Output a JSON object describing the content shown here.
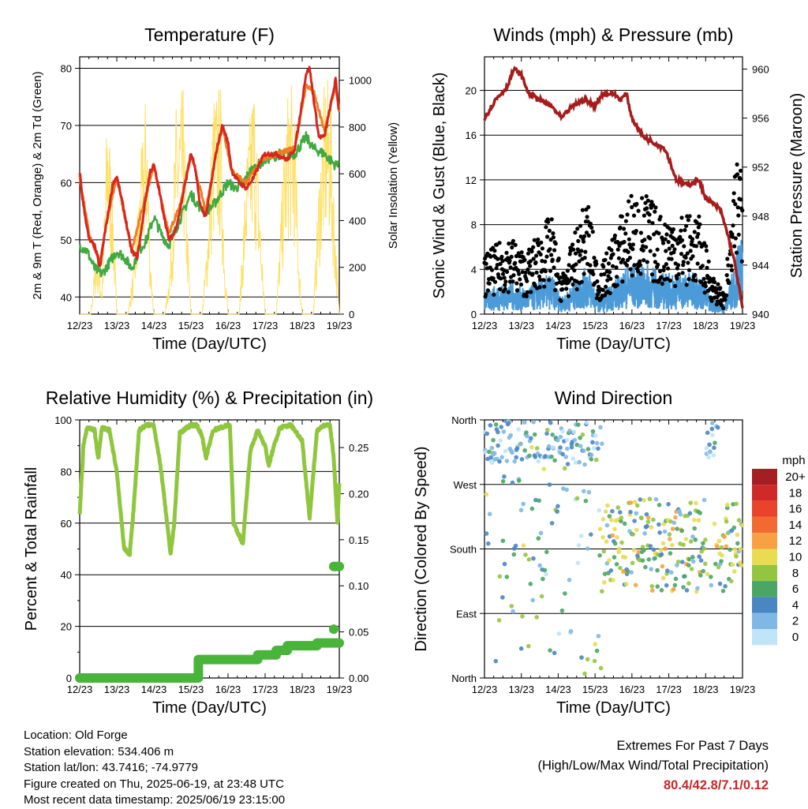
{
  "colors": {
    "red": "#d7261e",
    "orange": "#f07d25",
    "green": "#41a940",
    "yellow": "#ffe066",
    "blue": "#4b9bd8",
    "black": "#000000",
    "maroon": "#a51c1c",
    "rh_green": "#8fc63e",
    "precip_green": "#49b43a"
  },
  "xticks": [
    "12/23",
    "13/23",
    "14/23",
    "15/23",
    "16/23",
    "17/23",
    "18/23",
    "19/23"
  ],
  "xlabel": "Time (Day/UTC)",
  "chart_data": [
    {
      "id": "temp",
      "type": "line",
      "title": "Temperature (F)",
      "ylabel": "2m & 9m T (Red, Orange) & 2m Td (Green)",
      "y2label": "Solar Insolation (Yellow)",
      "ylim": [
        37,
        82
      ],
      "y2lim": [
        0,
        1100
      ],
      "yticks": [
        40,
        50,
        60,
        70,
        80
      ],
      "y2ticks": [
        0,
        200,
        400,
        600,
        800,
        1000
      ],
      "grid": true,
      "series": [
        {
          "color": "red",
          "x": [
            0,
            0.08,
            0.25,
            0.4,
            0.55,
            0.65,
            0.75,
            0.9,
            1.0,
            1.2,
            1.4,
            1.55,
            1.65,
            1.75,
            1.9,
            2.0,
            2.1,
            2.25,
            2.4,
            2.55,
            2.7,
            2.85,
            3.0,
            3.1,
            3.25,
            3.4,
            3.55,
            3.7,
            3.85,
            4.0,
            4.1,
            4.3,
            4.5,
            4.7,
            4.9,
            5.0,
            5.3,
            5.6,
            5.8,
            5.95,
            6.1,
            6.2,
            6.3,
            6.45,
            6.6,
            6.75,
            6.9,
            7.0
          ],
          "y": [
            62,
            57,
            50,
            49,
            45,
            50,
            54,
            60,
            61,
            55,
            48,
            47,
            51,
            56,
            62,
            63,
            60,
            55,
            50,
            51,
            55,
            60,
            65,
            63,
            56,
            54,
            60,
            66,
            70,
            67,
            62,
            60,
            59,
            61,
            64,
            65,
            65,
            64,
            66,
            72,
            79,
            80,
            75,
            68,
            68,
            73,
            78,
            72
          ]
        },
        {
          "color": "orange",
          "x": [
            0,
            0.25,
            0.55,
            0.75,
            1.0,
            1.4,
            1.75,
            2.0,
            2.4,
            2.7,
            3.0,
            3.4,
            3.7,
            3.85,
            4.1,
            4.5,
            4.9,
            5.3,
            5.8,
            6.1,
            6.3,
            6.6,
            6.9,
            7.0
          ],
          "y": [
            61,
            51,
            46,
            54,
            61,
            48,
            57,
            63,
            51,
            56,
            65,
            55,
            66,
            70,
            62,
            60,
            64,
            65,
            66,
            77,
            76,
            69,
            77,
            72
          ]
        },
        {
          "color": "green",
          "x": [
            0,
            0.2,
            0.4,
            0.6,
            0.8,
            1.0,
            1.2,
            1.4,
            1.6,
            1.8,
            2.0,
            2.2,
            2.4,
            2.6,
            2.8,
            3.0,
            3.2,
            3.4,
            3.6,
            3.8,
            4.0,
            4.2,
            4.4,
            4.6,
            5.0,
            5.4,
            5.8,
            6.1,
            6.3,
            6.6,
            6.9,
            7.0
          ],
          "y": [
            49,
            48,
            45,
            44,
            46,
            48,
            47,
            45,
            48,
            50,
            54,
            51,
            49,
            52,
            55,
            58,
            56,
            55,
            56,
            58,
            60,
            59,
            60,
            62,
            64,
            65,
            65,
            68,
            66,
            65,
            63,
            64
          ]
        },
        {
          "color": "yellow",
          "axis": "y2",
          "x": [
            0,
            0.3,
            0.45,
            0.6,
            0.75,
            0.9,
            1.0,
            1.3,
            1.45,
            1.6,
            1.8,
            1.9,
            2.0,
            2.3,
            2.45,
            2.6,
            2.8,
            2.9,
            3.0,
            3.3,
            3.45,
            3.6,
            3.8,
            3.9,
            4.0,
            4.3,
            4.5,
            4.7,
            4.85,
            5.0,
            5.3,
            5.5,
            5.65,
            5.8,
            5.9,
            6.0,
            6.3,
            6.45,
            6.6,
            6.75,
            6.9,
            7.0
          ],
          "y": [
            0,
            0,
            300,
            120,
            950,
            520,
            0,
            0,
            200,
            560,
            1000,
            300,
            0,
            0,
            250,
            900,
            980,
            400,
            0,
            0,
            380,
            950,
            1000,
            300,
            0,
            0,
            700,
            1050,
            500,
            0,
            0,
            700,
            1050,
            900,
            300,
            0,
            0,
            600,
            1000,
            1020,
            350,
            0
          ]
        }
      ]
    },
    {
      "id": "wind",
      "type": "scatter",
      "title": "Winds (mph) & Pressure (mb)",
      "ylabel": "Sonic Wind & Gust (Blue, Black)",
      "y2label": "Station Pressure (Maroon)",
      "ylim": [
        0,
        23
      ],
      "y2lim": [
        940,
        961
      ],
      "yticks": [
        0,
        4,
        8,
        12,
        16,
        20
      ],
      "y2ticks": [
        940,
        944,
        948,
        952,
        956,
        960
      ],
      "grid": true,
      "pressure": {
        "x": [
          0,
          0.3,
          0.6,
          0.8,
          1.0,
          1.2,
          1.5,
          1.8,
          2.1,
          2.4,
          2.7,
          3.0,
          3.2,
          3.5,
          3.7,
          3.85,
          4.0,
          4.3,
          4.6,
          4.9,
          5.2,
          5.5,
          5.8,
          6.0,
          6.2,
          6.4,
          6.6,
          6.8,
          7.0
        ],
        "y": [
          956,
          957.5,
          958.5,
          960,
          959.5,
          958,
          957.5,
          957,
          956,
          957,
          957.5,
          957,
          958,
          958,
          957.5,
          958,
          956,
          954.5,
          954,
          953.5,
          951,
          950.5,
          951,
          949.5,
          949,
          948.5,
          946.5,
          944,
          940.5
        ]
      },
      "wind_peaks": [
        [
          0,
          3
        ],
        [
          0.7,
          4
        ],
        [
          1.1,
          3
        ],
        [
          1.8,
          5
        ],
        [
          2.1,
          2
        ],
        [
          2.8,
          6
        ],
        [
          3.1,
          2
        ],
        [
          3.9,
          6
        ],
        [
          4.4,
          6
        ],
        [
          4.8,
          5
        ],
        [
          5.3,
          5
        ],
        [
          5.8,
          5
        ],
        [
          6.2,
          2
        ],
        [
          6.5,
          1
        ],
        [
          6.9,
          9
        ]
      ]
    },
    {
      "id": "rh",
      "type": "line",
      "title": "Relative Humidity (%) & Precipitation (in)",
      "ylabel": "Percent & Total Rainfall",
      "ylim": [
        0,
        100
      ],
      "y2lim": [
        0,
        0.28
      ],
      "yticks": [
        0,
        20,
        40,
        60,
        80,
        100
      ],
      "y2ticks": [
        "0.00",
        "0.05",
        "0.10",
        "0.15",
        "0.20",
        "0.25"
      ],
      "grid": true,
      "rh": {
        "x": [
          0,
          0.1,
          0.2,
          0.4,
          0.5,
          0.6,
          0.8,
          1.0,
          1.2,
          1.35,
          1.45,
          1.6,
          1.8,
          2.0,
          2.2,
          2.45,
          2.55,
          2.7,
          3.0,
          3.15,
          3.3,
          3.4,
          3.6,
          3.8,
          4.05,
          4.15,
          4.4,
          4.6,
          4.8,
          5.0,
          5.1,
          5.2,
          5.4,
          5.7,
          6.0,
          6.2,
          6.4,
          6.6,
          6.75,
          6.85,
          6.95,
          7.0
        ],
        "y": [
          63,
          90,
          97,
          96,
          85,
          97,
          96,
          80,
          50,
          48,
          65,
          96,
          98,
          98,
          80,
          48,
          60,
          95,
          98,
          98,
          94,
          85,
          96,
          97,
          98,
          60,
          52,
          88,
          96,
          90,
          82,
          88,
          97,
          98,
          92,
          62,
          96,
          98,
          98,
          85,
          60,
          76
        ]
      },
      "precip": {
        "x": [
          0,
          3.15,
          3.2,
          4.2,
          4.8,
          5.3,
          5.6,
          6.4,
          6.85,
          7.0
        ],
        "y": [
          0,
          0,
          0.02,
          0.02,
          0.025,
          0.03,
          0.035,
          0.038,
          0.038,
          0.038
        ]
      },
      "precip_points": [
        [
          6.85,
          0.053
        ],
        [
          6.85,
          0.121
        ],
        [
          7.0,
          0.121
        ]
      ]
    },
    {
      "id": "dir",
      "type": "scatter",
      "title": "Wind Direction",
      "ylabel": "Direction (Colored By Speed)",
      "yticks": [
        "North",
        "East",
        "South",
        "West",
        "North"
      ],
      "grid": true,
      "legend": {
        "unit": "mph",
        "labels": [
          "20+",
          "18",
          "16",
          "14",
          "12",
          "10",
          "8",
          "6",
          "4",
          "2",
          "0"
        ],
        "colors": [
          "#a41e22",
          "#cf2a28",
          "#ea432c",
          "#f26a30",
          "#f8a142",
          "#e9dc52",
          "#93c540",
          "#4aa665",
          "#4a86c2",
          "#7fb8e4",
          "#c0e4f8"
        ]
      }
    }
  ],
  "footer": {
    "location": "Location: Old Forge",
    "elevation": "Station elevation: 534.406 m",
    "latlon": "Station lat/lon: 43.7416; -74.9779",
    "created": "Figure created on Thu, 2025-06-19, at 23:48 UTC",
    "recent": "Most recent data timestamp: 2025/06/19 23:15:00",
    "extremes_title": "Extremes For Past 7 Days",
    "extremes_sub": "(High/Low/Max Wind/Total Precipitation)",
    "extremes_values": "80.4/42.8/7.1/0.12"
  }
}
